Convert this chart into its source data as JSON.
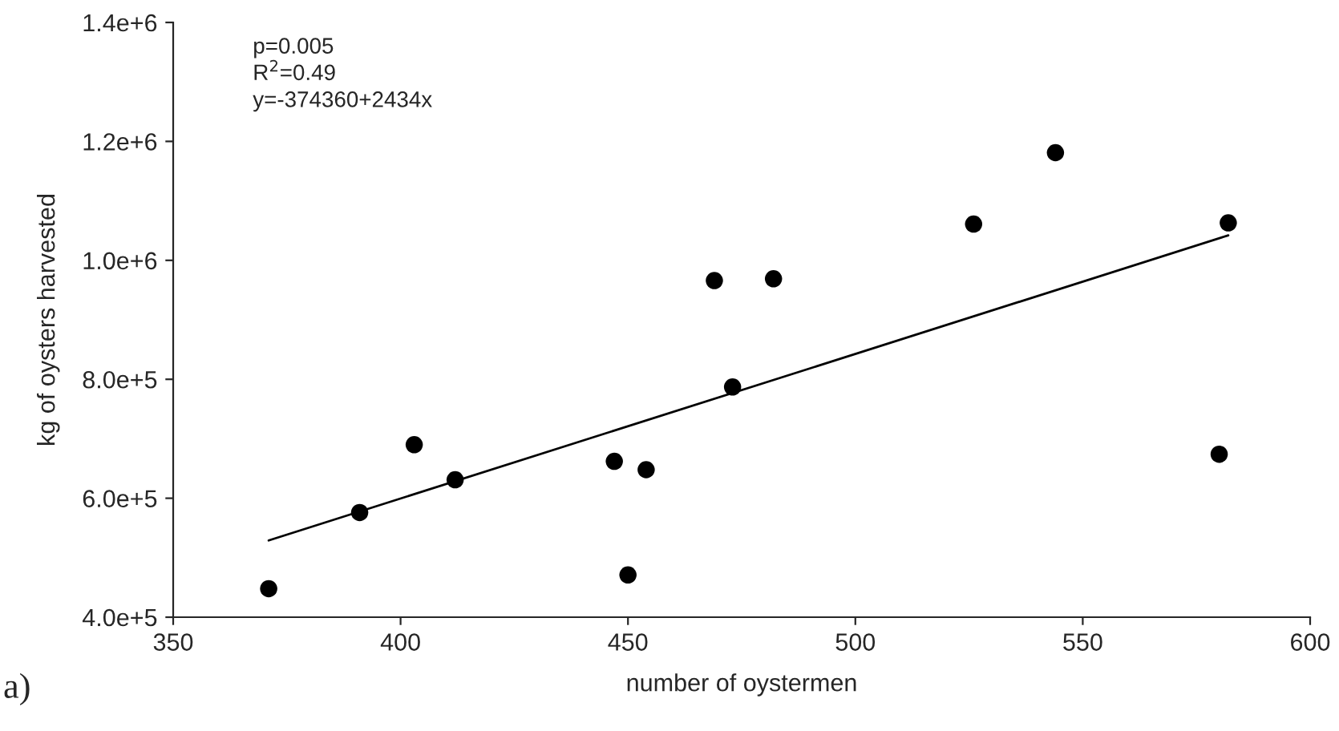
{
  "chart_data": {
    "type": "scatter",
    "xlabel": "number of oystermen",
    "ylabel": "kg of oysters harvested",
    "annotations": [
      "p=0.005",
      "R$^{2}$=0.49",
      "y=-374360+2434x",
      "a)"
    ],
    "series": [
      {
        "color": "#000000",
        "marker": "circle",
        "x": [
          371,
          391,
          403,
          412,
          447,
          454,
          450,
          469,
          482,
          473,
          526,
          544,
          580,
          582
        ],
        "values": [
          448000,
          576000,
          690000,
          631000,
          662000,
          648000,
          471000,
          966000,
          969000,
          787000,
          1061000,
          1181000,
          674000,
          1063000
        ]
      },
      {
        "type": "line",
        "color": "#000000",
        "marker": "none",
        "line_style": "solid",
        "x": [
          371,
          582
        ],
        "values": [
          529000,
          1042000
        ]
      }
    ],
    "xlim": [
      350,
      600
    ],
    "xticks": [
      350,
      400,
      450,
      500,
      550,
      600
    ],
    "ylim": [
      400000,
      1400000
    ],
    "yticks": [
      {
        "value": 400000,
        "label": "4.0e+5"
      },
      {
        "value": 600000,
        "label": "6.0e+5"
      },
      {
        "value": 800000,
        "label": "8.0e+5"
      },
      {
        "value": 1000000,
        "label": "1.0e+6"
      },
      {
        "value": 1200000,
        "label": "1.2e+6"
      },
      {
        "value": 1400000,
        "label": "1.4e+6"
      }
    ],
    "grid": false
  }
}
